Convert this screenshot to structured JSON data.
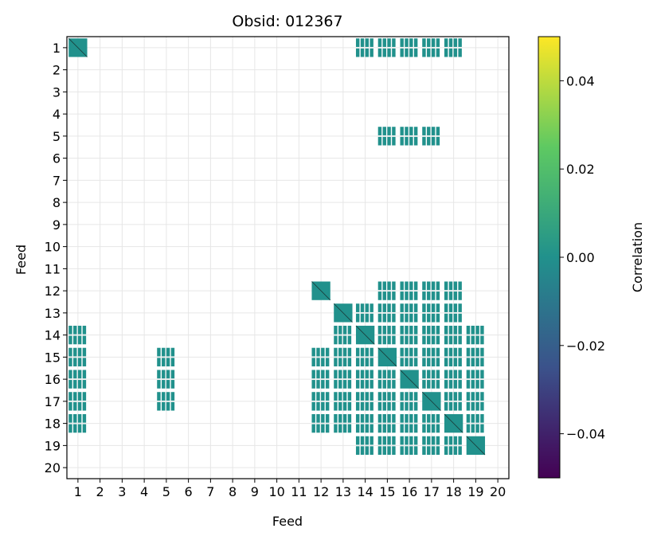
{
  "chart_data": {
    "type": "heatmap",
    "title": "Obsid: 012367",
    "xlabel": "Feed",
    "ylabel": "Feed",
    "x_ticks": [
      "1",
      "2",
      "3",
      "4",
      "5",
      "6",
      "7",
      "8",
      "9",
      "10",
      "11",
      "12",
      "13",
      "14",
      "15",
      "16",
      "17",
      "18",
      "19",
      "20"
    ],
    "y_ticks": [
      "1",
      "2",
      "3",
      "4",
      "5",
      "6",
      "7",
      "8",
      "9",
      "10",
      "11",
      "12",
      "13",
      "14",
      "15",
      "16",
      "17",
      "18",
      "19",
      "20"
    ],
    "grid": true,
    "colorbar": {
      "label": "Correlation",
      "range": [
        -0.05,
        0.05
      ],
      "ticks": [
        {
          "value": 0.04,
          "label": "0.04"
        },
        {
          "value": 0.02,
          "label": "0.02"
        },
        {
          "value": 0.0,
          "label": "0.00"
        },
        {
          "value": -0.02,
          "label": "−0.02"
        },
        {
          "value": -0.04,
          "label": "−0.04"
        }
      ],
      "colormap": "viridis",
      "colors": [
        "#440154",
        "#3b528b",
        "#21918c",
        "#5ec962",
        "#fde725"
      ]
    },
    "cell_value": 0.0,
    "cell_color": "#21918c",
    "active_feed_pairs": [
      {
        "row": 1,
        "cols": [
          1,
          14,
          15,
          16,
          17,
          18
        ]
      },
      {
        "row": 5,
        "cols": [
          15,
          16,
          17
        ]
      },
      {
        "row": 12,
        "cols": [
          12,
          15,
          16,
          17,
          18
        ]
      },
      {
        "row": 13,
        "cols": [
          13,
          14,
          15,
          16,
          17,
          18
        ]
      },
      {
        "row": 14,
        "cols": [
          1,
          13,
          14,
          15,
          16,
          17,
          18,
          19
        ]
      },
      {
        "row": 15,
        "cols": [
          1,
          5,
          12,
          13,
          14,
          15,
          16,
          17,
          18,
          19
        ]
      },
      {
        "row": 16,
        "cols": [
          1,
          5,
          12,
          13,
          14,
          15,
          16,
          17,
          18,
          19
        ]
      },
      {
        "row": 17,
        "cols": [
          1,
          5,
          12,
          13,
          14,
          15,
          16,
          17,
          18,
          19
        ]
      },
      {
        "row": 18,
        "cols": [
          1,
          12,
          13,
          14,
          15,
          16,
          17,
          18,
          19
        ]
      },
      {
        "row": 19,
        "cols": [
          14,
          15,
          16,
          17,
          18,
          19
        ]
      }
    ]
  }
}
